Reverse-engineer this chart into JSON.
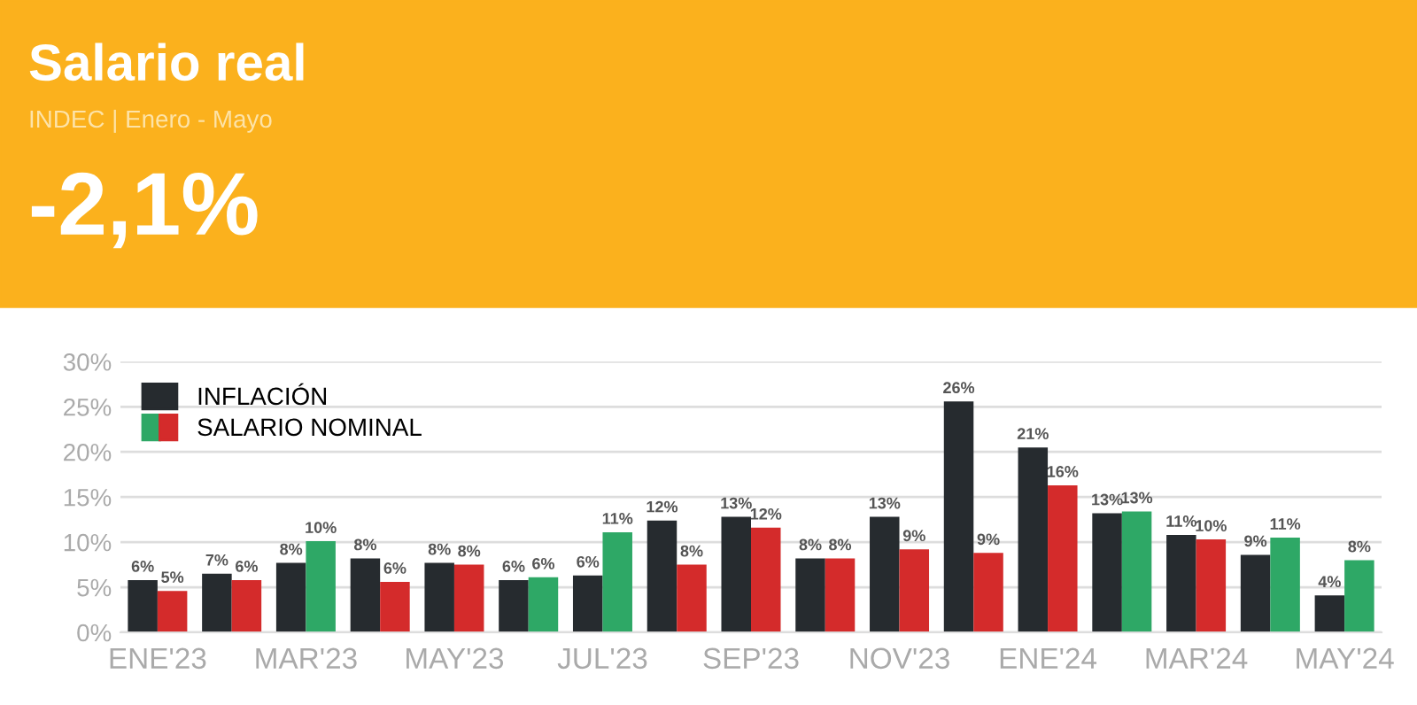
{
  "chart_data": {
    "type": "bar",
    "title": "Salario real",
    "subtitle": "INDEC | Enero - Mayo",
    "annotations": [
      "-2,1%"
    ],
    "categories": [
      "ENE'23",
      null,
      "MAR'23",
      null,
      "MAY'23",
      null,
      "JUL'23",
      null,
      "SEP'23",
      null,
      "NOV'23",
      null,
      "ENE'24",
      null,
      "MAR'24",
      null,
      "MAY'24"
    ],
    "series": [
      {
        "name": "INFLACIÓN",
        "color": "#262b2f",
        "values": [
          5.8,
          6.5,
          7.7,
          8.2,
          7.7,
          5.8,
          6.3,
          12.4,
          12.8,
          8.2,
          12.8,
          25.6,
          20.5,
          13.2,
          10.8,
          8.6,
          4.1
        ],
        "value_labels": [
          "6%",
          "7%",
          "8%",
          "8%",
          "8%",
          "6%",
          "6%",
          "12%",
          "13%",
          "8%",
          "13%",
          "26%",
          "21%",
          "13%",
          "11%",
          "9%",
          "4%"
        ]
      },
      {
        "name": "SALARIO NOMINAL",
        "colors": [
          "#d42b2b",
          "#d42b2b",
          "#2ea866",
          "#d42b2b",
          "#d42b2b",
          "#2ea866",
          "#2ea866",
          "#d42b2b",
          "#d42b2b",
          "#d42b2b",
          "#d42b2b",
          "#d42b2b",
          "#d42b2b",
          "#2ea866",
          "#d42b2b",
          "#2ea866",
          "#2ea866"
        ],
        "values": [
          4.6,
          5.8,
          10.1,
          5.6,
          7.5,
          6.1,
          11.1,
          7.5,
          11.6,
          8.2,
          9.2,
          8.8,
          16.3,
          13.4,
          10.3,
          10.5,
          8.0
        ],
        "value_labels": [
          "5%",
          "6%",
          "10%",
          "6%",
          "8%",
          "6%",
          "11%",
          "8%",
          "12%",
          "8%",
          "9%",
          "9%",
          "16%",
          "13%",
          "10%",
          "11%",
          "8%"
        ]
      }
    ],
    "ylim": [
      0,
      30
    ],
    "yticks": [
      {
        "value": 0,
        "label": "0%"
      },
      {
        "value": 5,
        "label": "5%"
      },
      {
        "value": 10,
        "label": "10%"
      },
      {
        "value": 15,
        "label": "15%"
      },
      {
        "value": 20,
        "label": "20%"
      },
      {
        "value": 25,
        "label": "25%"
      },
      {
        "value": 30,
        "label": "30%"
      }
    ],
    "grid": "y",
    "legend": "top left"
  }
}
